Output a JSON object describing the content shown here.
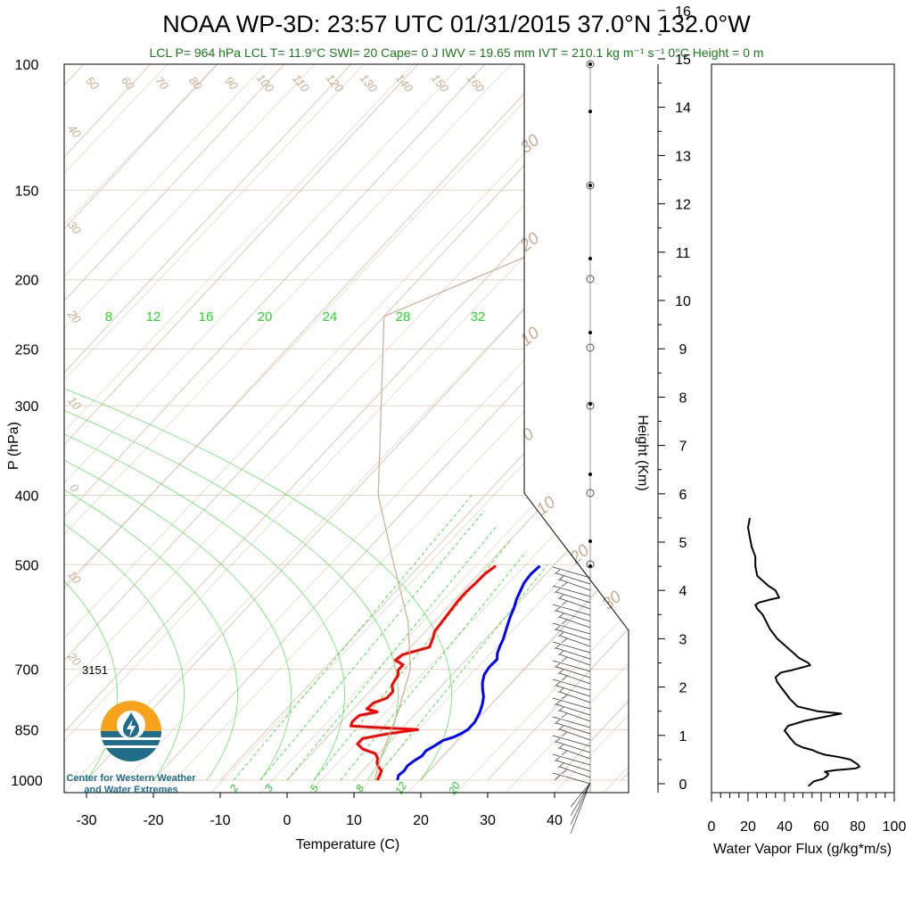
{
  "title": "NOAA WP-3D: 23:57 UTC 01/31/2015  37.0°N 132.0°W",
  "subtitle": "LCL P= 964 hPa  LCL T= 11.9°C  SWI= 20  Cape= 0 J  IWV = 19.65 mm  IVT = 210.1 kg m⁻¹ s⁻¹  0°C Height = 0 m",
  "label_3151": "3151",
  "logo_text": [
    "Center for Western Weather",
    "and Water Extremes"
  ],
  "colors": {
    "temperature": "#ff0000",
    "dewpoint": "#0000ff",
    "isotherm": "#c9ad8f",
    "mixing_ratio": "#22dd22",
    "flux": "#000000"
  },
  "chart_data": [
    {
      "type": "line",
      "subtype": "skew-t",
      "xlabel": "Temperature (C)",
      "ylabel": "P (hPa)",
      "x_ticks": [
        -30,
        -20,
        -10,
        0,
        10,
        20,
        30,
        40
      ],
      "p_ticks": [
        100,
        150,
        200,
        250,
        300,
        400,
        500,
        700,
        850,
        1000
      ],
      "height_axis": {
        "label": "Height (Km)",
        "ticks": [
          0,
          1,
          2,
          3,
          4,
          5,
          6,
          7,
          8,
          9,
          10,
          11,
          12,
          13,
          14,
          15,
          16
        ]
      },
      "isotherm_labels": [
        "50",
        "60",
        "70",
        "80",
        "90",
        "100",
        "110",
        "120",
        "130",
        "140",
        "150",
        "160"
      ],
      "left_labels": [
        "40",
        "30",
        "20",
        "10",
        "0",
        "10",
        "20"
      ],
      "right_labels": [
        "30",
        "20",
        "10",
        "0",
        "10",
        "20",
        "30"
      ],
      "mixing_ratio_top_labels": [
        "8",
        "12",
        "16",
        "20",
        "24",
        "28",
        "32"
      ],
      "mixing_ratio_bottom_labels": [
        "2",
        "3",
        "5",
        "8",
        "12",
        "20"
      ],
      "series": [
        {
          "name": "Temperature",
          "points": [
            [
              13.5,
              1000
            ],
            [
              13.2,
              985
            ],
            [
              12.8,
              970
            ],
            [
              11.8,
              958
            ],
            [
              11.0,
              945
            ],
            [
              10.5,
              932
            ],
            [
              9.5,
              918
            ],
            [
              7.0,
              905
            ],
            [
              5.5,
              890
            ],
            [
              5.5,
              875
            ],
            [
              8.5,
              862
            ],
            [
              12.5,
              850
            ],
            [
              7.0,
              845
            ],
            [
              2.0,
              840
            ],
            [
              1.6,
              828
            ],
            [
              1.8,
              812
            ],
            [
              4.0,
              803
            ],
            [
              2.0,
              795
            ],
            [
              2.2,
              780
            ],
            [
              3.5,
              768
            ],
            [
              3.5,
              752
            ],
            [
              2.5,
              737
            ],
            [
              2.2,
              725
            ],
            [
              2.0,
              713
            ],
            [
              1.3,
              702
            ],
            [
              1.3,
              690
            ],
            [
              -0.5,
              680
            ],
            [
              -0.2,
              668
            ],
            [
              1.3,
              660
            ],
            [
              2.8,
              652
            ],
            [
              2.4,
              642
            ],
            [
              2.0,
              632
            ],
            [
              1.4,
              620
            ],
            [
              1.2,
              605
            ],
            [
              1.0,
              590
            ],
            [
              0.8,
              575
            ],
            [
              0.6,
              560
            ],
            [
              0.6,
              545
            ],
            [
              0.8,
              530
            ],
            [
              0.9,
              515
            ],
            [
              1.4,
              502
            ]
          ]
        },
        {
          "name": "Dewpoint",
          "points": [
            [
              16.5,
              1000
            ],
            [
              16.0,
              985
            ],
            [
              16.2,
              970
            ],
            [
              16.0,
              955
            ],
            [
              16.3,
              940
            ],
            [
              16.8,
              925
            ],
            [
              16.7,
              910
            ],
            [
              17.3,
              895
            ],
            [
              17.8,
              880
            ],
            [
              19.0,
              870
            ],
            [
              19.6,
              860
            ],
            [
              20.0,
              850
            ],
            [
              20.0,
              830
            ],
            [
              19.4,
              805
            ],
            [
              18.7,
              785
            ],
            [
              17.8,
              765
            ],
            [
              16.5,
              745
            ],
            [
              15.6,
              730
            ],
            [
              14.8,
              712
            ],
            [
              14.5,
              695
            ],
            [
              14.6,
              678
            ],
            [
              13.8,
              665
            ],
            [
              13.2,
              650
            ],
            [
              12.7,
              635
            ],
            [
              12.0,
              620
            ],
            [
              11.3,
              605
            ],
            [
              10.6,
              590
            ],
            [
              10.0,
              575
            ],
            [
              9.2,
              560
            ],
            [
              8.6,
              545
            ],
            [
              8.0,
              530
            ],
            [
              7.8,
              515
            ],
            [
              8.0,
              502
            ]
          ]
        },
        {
          "name": "Parcel",
          "points": [
            [
              13.2,
              1000
            ],
            [
              11.9,
              964
            ],
            [
              10.0,
              900
            ],
            [
              7.0,
              800
            ],
            [
              3.0,
              700
            ],
            [
              -4.0,
              600
            ],
            [
              -14.0,
              500
            ],
            [
              -26.0,
              400
            ],
            [
              -38.0,
              300
            ],
            [
              -50.0,
              225
            ],
            [
              -35.0,
              180
            ],
            [
              -20.0,
              150
            ],
            [
              -5.0,
              125
            ],
            [
              10.0,
              105
            ]
          ]
        }
      ]
    },
    {
      "type": "line",
      "xlabel": "Water Vapor Flux (g/kg*m/s)",
      "x_ticks": [
        0,
        20,
        40,
        60,
        80,
        100
      ],
      "xlim": [
        0,
        100
      ],
      "ylim": [
        0,
        16.5
      ],
      "series": [
        {
          "name": "",
          "x": [
            53,
            56,
            61,
            63,
            64,
            62,
            68,
            74,
            79,
            81,
            80,
            76,
            70,
            62,
            58,
            55,
            50,
            46,
            43,
            40,
            42,
            51,
            64,
            71,
            58,
            47,
            43,
            40,
            38,
            36,
            35,
            38,
            44,
            54,
            53,
            48,
            42,
            36,
            32,
            28,
            25,
            24,
            26,
            33,
            37,
            35,
            31,
            28,
            25,
            24,
            24,
            24,
            23,
            22,
            21,
            20,
            21
          ],
          "height_km": [
            -0.05,
            0.05,
            0.1,
            0.15,
            0.2,
            0.25,
            0.28,
            0.3,
            0.32,
            0.35,
            0.4,
            0.5,
            0.55,
            0.6,
            0.65,
            0.7,
            0.75,
            0.82,
            0.95,
            1.1,
            1.2,
            1.3,
            1.4,
            1.45,
            1.5,
            1.6,
            1.75,
            1.9,
            2.0,
            2.1,
            2.2,
            2.3,
            2.35,
            2.45,
            2.5,
            2.6,
            2.8,
            3.0,
            3.2,
            3.5,
            3.62,
            3.7,
            3.75,
            3.82,
            3.85,
            4.0,
            4.1,
            4.2,
            4.3,
            4.5,
            4.6,
            4.7,
            4.8,
            4.9,
            5.1,
            5.3,
            5.5
          ]
        }
      ]
    }
  ]
}
